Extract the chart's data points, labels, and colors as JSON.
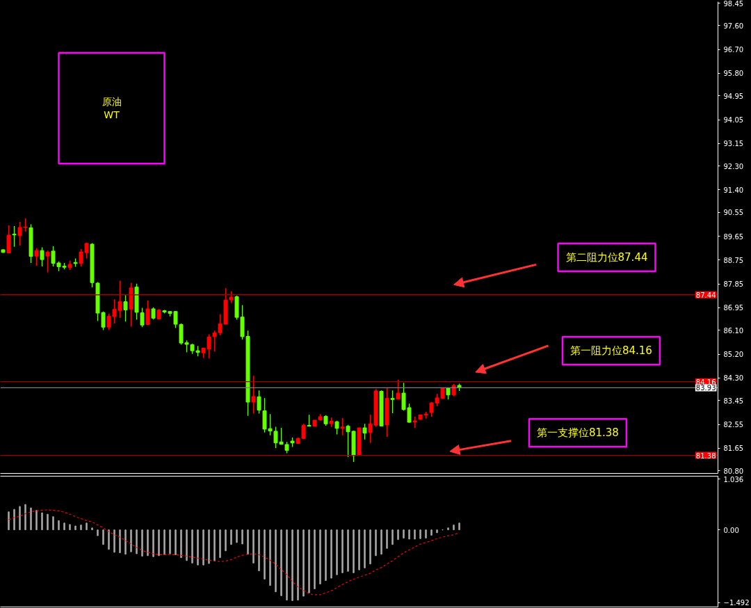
{
  "chart_data": [
    {
      "type": "candlestick",
      "title": "原油\nWT",
      "categories": [
        null,
        null,
        null,
        null,
        null,
        null,
        null,
        null,
        null,
        null,
        null,
        null,
        null,
        null,
        null,
        null,
        null,
        null,
        null,
        null,
        null,
        null,
        null,
        null,
        null,
        null,
        null,
        null,
        null,
        null,
        null,
        null,
        null,
        null,
        null,
        null,
        null,
        null,
        null,
        null,
        null,
        null,
        null,
        null,
        null,
        null,
        null,
        null,
        null,
        null,
        null,
        null,
        null,
        null,
        null,
        null,
        null,
        null,
        null,
        null,
        null,
        null,
        null,
        null,
        null,
        null,
        null,
        null,
        null,
        null,
        null,
        null,
        null,
        null,
        null,
        null,
        null,
        null,
        null,
        null,
        null,
        null,
        null,
        null,
        null,
        null,
        null,
        null,
        null,
        null,
        null,
        null,
        null,
        null,
        null,
        null,
        null,
        null,
        null,
        null,
        null,
        null,
        null,
        null,
        null,
        null,
        null,
        null,
        null,
        null,
        null,
        null,
        null,
        null,
        null,
        null,
        null,
        null,
        null,
        null,
        null,
        null,
        null,
        null,
        null,
        null,
        null,
        null,
        null
      ],
      "ohlc": [
        [
          89.14,
          89.16,
          89.02,
          89.04
        ],
        [
          89.02,
          90.06,
          89.02,
          89.69
        ],
        [
          89.73,
          90.03,
          89.25,
          89.7
        ],
        [
          89.67,
          90.19,
          89.3,
          89.98
        ],
        [
          89.98,
          90.32,
          89.82,
          90.0
        ],
        [
          89.97,
          90.1,
          88.64,
          88.89
        ],
        [
          88.9,
          89.2,
          88.54,
          89.11
        ],
        [
          89.11,
          89.23,
          88.51,
          88.77
        ],
        [
          88.9,
          89.11,
          88.29,
          89.05
        ],
        [
          89.09,
          89.27,
          88.51,
          88.63
        ],
        [
          88.64,
          88.7,
          88.33,
          88.5
        ],
        [
          88.52,
          88.64,
          88.4,
          88.48
        ],
        [
          88.47,
          88.73,
          88.38,
          88.59
        ],
        [
          88.66,
          88.81,
          88.5,
          88.62
        ],
        [
          88.63,
          89.17,
          88.51,
          89.06
        ],
        [
          89.03,
          89.41,
          88.81,
          89.38
        ],
        [
          89.35,
          89.39,
          87.72,
          87.9
        ],
        [
          87.88,
          87.92,
          86.45,
          86.75
        ],
        [
          86.77,
          86.81,
          86.11,
          86.22
        ],
        [
          86.22,
          86.73,
          86.11,
          86.63
        ],
        [
          86.62,
          87.27,
          86.36,
          86.89
        ],
        [
          86.85,
          87.97,
          86.57,
          87.18
        ],
        [
          87.18,
          87.45,
          86.43,
          86.87
        ],
        [
          86.9,
          87.89,
          86.24,
          87.7
        ],
        [
          87.73,
          87.86,
          86.5,
          86.78
        ],
        [
          86.76,
          86.95,
          86.22,
          86.3
        ],
        [
          86.32,
          87.23,
          86.3,
          86.91
        ],
        [
          86.91,
          86.97,
          86.51,
          86.56
        ],
        [
          86.53,
          86.9,
          86.52,
          86.86
        ],
        [
          86.84,
          86.87,
          86.74,
          86.79
        ],
        [
          86.81,
          86.81,
          86.63,
          86.74
        ],
        [
          86.81,
          86.83,
          86.19,
          86.33
        ],
        [
          86.32,
          86.36,
          85.56,
          85.62
        ],
        [
          85.63,
          85.72,
          85.27,
          85.57
        ],
        [
          85.56,
          85.59,
          85.21,
          85.33
        ],
        [
          85.33,
          85.51,
          85.12,
          85.27
        ],
        [
          85.25,
          85.43,
          85.06,
          85.43
        ],
        [
          85.39,
          85.95,
          85.04,
          85.85
        ],
        [
          85.86,
          86.09,
          85.3,
          86.0
        ],
        [
          86.01,
          86.71,
          85.91,
          86.34
        ],
        [
          86.33,
          87.69,
          86.33,
          87.24
        ],
        [
          87.25,
          87.57,
          87.13,
          87.35
        ],
        [
          87.37,
          87.41,
          86.5,
          86.59
        ],
        [
          86.6,
          87.05,
          85.75,
          85.86
        ],
        [
          85.87,
          86.09,
          82.87,
          83.39
        ],
        [
          83.39,
          84.38,
          82.96,
          83.6
        ],
        [
          83.59,
          83.83,
          82.96,
          83.09
        ],
        [
          83.06,
          83.54,
          82.24,
          82.37
        ],
        [
          82.39,
          82.94,
          82.14,
          82.3
        ],
        [
          82.29,
          82.46,
          81.65,
          81.85
        ],
        [
          81.89,
          82.42,
          81.78,
          81.8
        ],
        [
          81.79,
          81.89,
          81.46,
          81.57
        ],
        [
          81.92,
          82.05,
          81.7,
          81.85
        ],
        [
          81.83,
          82.05,
          81.82,
          82.02
        ],
        [
          82.02,
          82.57,
          81.99,
          82.52
        ],
        [
          82.51,
          82.91,
          82.48,
          82.48
        ],
        [
          82.48,
          82.71,
          82.48,
          82.71
        ],
        [
          82.72,
          82.94,
          82.68,
          82.84
        ],
        [
          82.85,
          82.9,
          82.5,
          82.57
        ],
        [
          82.58,
          82.81,
          82.45,
          82.67
        ],
        [
          82.65,
          82.69,
          82.17,
          82.4
        ],
        [
          82.4,
          82.79,
          82.14,
          82.45
        ],
        [
          82.48,
          82.53,
          81.32,
          82.27
        ],
        [
          82.29,
          82.31,
          81.13,
          81.37
        ],
        [
          81.4,
          82.42,
          81.4,
          82.42
        ],
        [
          82.42,
          82.57,
          81.98,
          82.22
        ],
        [
          82.24,
          82.91,
          81.85,
          82.57
        ],
        [
          82.52,
          83.88,
          82.46,
          83.81
        ],
        [
          83.8,
          83.83,
          82.47,
          82.49
        ],
        [
          82.53,
          83.92,
          82.08,
          83.53
        ],
        [
          83.53,
          83.83,
          82.97,
          83.49
        ],
        [
          83.5,
          84.23,
          83.5,
          83.73
        ],
        [
          83.73,
          84.12,
          83.07,
          83.11
        ],
        [
          83.18,
          83.33,
          82.61,
          82.63
        ],
        [
          82.64,
          82.84,
          82.42,
          82.68
        ],
        [
          82.74,
          82.91,
          82.72,
          82.91
        ],
        [
          82.9,
          83.03,
          82.77,
          82.94
        ],
        [
          83.0,
          83.39,
          82.84,
          83.36
        ],
        [
          83.35,
          83.7,
          83.24,
          83.55
        ],
        [
          83.53,
          83.94,
          83.51,
          83.92
        ],
        [
          83.92,
          83.94,
          83.49,
          83.66
        ],
        [
          83.66,
          84.08,
          83.61,
          84.02
        ],
        [
          84.02,
          84.09,
          83.81,
          83.93
        ],
        null,
        null,
        null,
        null,
        null,
        null,
        null,
        null,
        null,
        null,
        null,
        null,
        null,
        null,
        null,
        null,
        null,
        null,
        null,
        null,
        null,
        null,
        null,
        null,
        null,
        null,
        null,
        null,
        null,
        null,
        null,
        null,
        null,
        null,
        null,
        null,
        null,
        null,
        null,
        null,
        null,
        null,
        null,
        null,
        null,
        null
      ],
      "colors": [
        "#66ff00",
        "#ff0000",
        "#66ff00",
        "#ff0000",
        "#ff0000",
        "#66ff00",
        "#ff0000",
        "#66ff00",
        "#ff0000",
        "#66ff00",
        "#66ff00",
        "#66ff00",
        "#ff0000",
        "#66ff00",
        "#ff0000",
        "#ff0000",
        "#66ff00",
        "#66ff00",
        "#66ff00",
        "#ff0000",
        "#ff0000",
        "#ff0000",
        "#66ff00",
        "#ff0000",
        "#66ff00",
        "#66ff00",
        "#ff0000",
        "#66ff00",
        "#ff0000",
        "#66ff00",
        "#66ff00",
        "#66ff00",
        "#66ff00",
        "#66ff00",
        "#66ff00",
        "#66ff00",
        "#ff0000",
        "#ff0000",
        "#ff0000",
        "#ff0000",
        "#ff0000",
        "#ff0000",
        "#66ff00",
        "#66ff00",
        "#66ff00",
        "#ff0000",
        "#66ff00",
        "#66ff00",
        "#66ff00",
        "#66ff00",
        "#66ff00",
        "#66ff00",
        "#66ff00",
        "#ff0000",
        "#ff0000",
        "#66ff00",
        "#ff0000",
        "#ff0000",
        "#66ff00",
        "#ff0000",
        "#66ff00",
        "#ff0000",
        "#66ff00",
        "#66ff00",
        "#ff0000",
        "#66ff00",
        "#ff0000",
        "#ff0000",
        "#66ff00",
        "#ff0000",
        "#66ff00",
        "#ff0000",
        "#66ff00",
        "#66ff00",
        "#ff0000",
        "#ff0000",
        "#ff0000",
        "#ff0000",
        "#ff0000",
        "#ff0000",
        "#66ff00",
        "#ff0000",
        "#66ff00",
        null,
        null,
        null,
        null,
        null,
        null,
        null,
        null,
        null,
        null,
        null,
        null,
        null,
        null,
        null,
        null,
        null,
        null,
        null,
        null,
        null,
        null,
        null,
        null,
        null,
        null,
        null,
        null,
        null,
        null,
        null,
        null,
        null,
        null,
        null,
        null,
        null,
        null,
        null,
        null,
        null,
        null,
        null,
        null,
        null,
        null
      ],
      "ylim": [
        80.7,
        98.5
      ],
      "yticks": [
        {
          "value": 80.8,
          "label": "80.80"
        },
        81.65,
        82.55,
        83.45,
        {
          "value": 84.3,
          "label": "84.30"
        },
        {
          "value": 85.2,
          "label": "85.20"
        },
        {
          "value": 86.1,
          "label": "86.10"
        },
        86.95,
        87.85,
        88.75,
        89.65,
        90.55,
        {
          "value": 91.4,
          "label": "91.40"
        },
        {
          "value": 92.3,
          "label": "92.30"
        },
        93.15,
        94.05,
        94.95,
        {
          "value": 95.8,
          "label": "95.80"
        },
        {
          "value": 96.7,
          "label": "96.70"
        },
        {
          "value": 97.6,
          "label": "97.60"
        },
        98.45
      ],
      "ref_lines": [
        {
          "axis": "y",
          "value": 87.44,
          "label": "87.44",
          "color": "#a00000"
        },
        {
          "axis": "y",
          "value": 84.16,
          "label": "84.16",
          "color": "#a00000"
        },
        {
          "axis": "y",
          "value": 83.93,
          "label": "83.93",
          "color": "#808080"
        },
        {
          "axis": "y",
          "value": 81.38,
          "label": "81.38",
          "color": "#a00000"
        }
      ],
      "annotations": [
        {
          "text": "第二阻力位87.44",
          "y": 87.44
        },
        {
          "text": "第一阻力位84.16",
          "y": 84.16
        },
        {
          "text": "第一支撑位81.38",
          "y": 81.38
        }
      ],
      "tick_labels": "y"
    },
    {
      "type": "bar",
      "categories": [
        null,
        null,
        null,
        null,
        null,
        null,
        null,
        null,
        null,
        null,
        null,
        null,
        null,
        null,
        null,
        null,
        null,
        null,
        null,
        null,
        null,
        null,
        null,
        null,
        null,
        null,
        null,
        null,
        null,
        null,
        null,
        null,
        null,
        null,
        null,
        null,
        null,
        null,
        null,
        null,
        null,
        null,
        null,
        null,
        null,
        null,
        null,
        null,
        null,
        null,
        null,
        null,
        null,
        null,
        null,
        null,
        null,
        null,
        null,
        null,
        null,
        null,
        null,
        null,
        null,
        null,
        null,
        null,
        null,
        null,
        null,
        null,
        null,
        null,
        null,
        null,
        null,
        null,
        null,
        null,
        null,
        null,
        null,
        null,
        null,
        null,
        null,
        null,
        null,
        null,
        null,
        null,
        null,
        null,
        null,
        null,
        null,
        null,
        null,
        null,
        null,
        null,
        null,
        null,
        null,
        null,
        null,
        null,
        null,
        null,
        null,
        null,
        null,
        null,
        null,
        null,
        null,
        null,
        null,
        null,
        null,
        null,
        null,
        null,
        null,
        null,
        null,
        null,
        null
      ],
      "series": [
        {
          "type": "bar",
          "color": "#a8a8a8",
          "values": [
            null,
            0.37,
            0.42,
            0.48,
            0.52,
            0.45,
            0.4,
            0.35,
            0.32,
            0.27,
            0.19,
            0.14,
            0.11,
            0.08,
            0.1,
            0.14,
            0.04,
            -0.12,
            -0.3,
            -0.4,
            -0.46,
            -0.47,
            -0.5,
            -0.45,
            -0.49,
            -0.54,
            -0.53,
            -0.55,
            -0.53,
            -0.51,
            -0.49,
            -0.51,
            -0.57,
            -0.63,
            -0.68,
            -0.72,
            -0.72,
            -0.69,
            -0.63,
            -0.57,
            -0.43,
            -0.3,
            -0.26,
            -0.29,
            -0.5,
            -0.68,
            -0.84,
            -1.01,
            -1.14,
            -1.27,
            -1.35,
            -1.44,
            -1.45,
            -1.44,
            -1.36,
            -1.29,
            -1.21,
            -1.11,
            -1.04,
            -0.99,
            -0.92,
            -0.88,
            -0.85,
            -0.88,
            -0.82,
            -0.78,
            -0.7,
            -0.53,
            -0.5,
            -0.38,
            -0.3,
            -0.2,
            -0.17,
            -0.19,
            -0.19,
            -0.18,
            -0.17,
            -0.11,
            -0.06,
            0.0,
            0.04,
            0.1,
            0.14,
            null,
            null,
            null,
            null,
            null,
            null,
            null,
            null,
            null,
            null,
            null,
            null,
            null,
            null,
            null,
            null,
            null,
            null,
            null,
            null,
            null,
            null,
            null,
            null,
            null,
            null,
            null,
            null,
            null,
            null,
            null,
            null,
            null,
            null,
            null,
            null,
            null,
            null,
            null,
            null,
            null,
            null,
            null,
            null,
            null,
            null
          ]
        },
        {
          "type": "line",
          "color": "#ff0000",
          "line_style": "dashed",
          "values": [
            null,
            0.21,
            0.25,
            0.28,
            0.33,
            0.37,
            0.39,
            0.4,
            0.41,
            0.4,
            0.39,
            0.36,
            0.32,
            0.27,
            0.23,
            0.19,
            0.16,
            0.1,
            0.04,
            -0.04,
            -0.1,
            -0.15,
            -0.22,
            -0.29,
            -0.36,
            -0.42,
            -0.46,
            -0.49,
            -0.51,
            -0.51,
            -0.51,
            -0.51,
            -0.52,
            -0.54,
            -0.56,
            -0.58,
            -0.6,
            -0.62,
            -0.64,
            -0.65,
            -0.64,
            -0.61,
            -0.56,
            -0.52,
            -0.5,
            -0.49,
            -0.51,
            -0.56,
            -0.62,
            -0.71,
            -0.81,
            -0.92,
            -1.06,
            -1.17,
            -1.24,
            -1.31,
            -1.33,
            -1.33,
            -1.29,
            -1.25,
            -1.18,
            -1.12,
            -1.06,
            -1.01,
            -0.97,
            -0.93,
            -0.89,
            -0.82,
            -0.77,
            -0.7,
            -0.63,
            -0.55,
            -0.47,
            -0.41,
            -0.35,
            -0.29,
            -0.26,
            -0.22,
            -0.18,
            -0.15,
            -0.12,
            -0.1,
            -0.06,
            null,
            null,
            null,
            null,
            null,
            null,
            null,
            null,
            null,
            null,
            null,
            null,
            null,
            null,
            null,
            null,
            null,
            null,
            null,
            null,
            null,
            null,
            null,
            null,
            null,
            null,
            null,
            null,
            null,
            null,
            null,
            null,
            null,
            null,
            null,
            null,
            null,
            null,
            null,
            null,
            null,
            null,
            null,
            null,
            null,
            null
          ]
        }
      ],
      "ylim": [
        -1.58,
        1.1
      ],
      "yticks": [
        -1.492,
        {
          "value": 0,
          "label": "0.00"
        },
        1.036
      ],
      "tick_labels": "y"
    }
  ]
}
